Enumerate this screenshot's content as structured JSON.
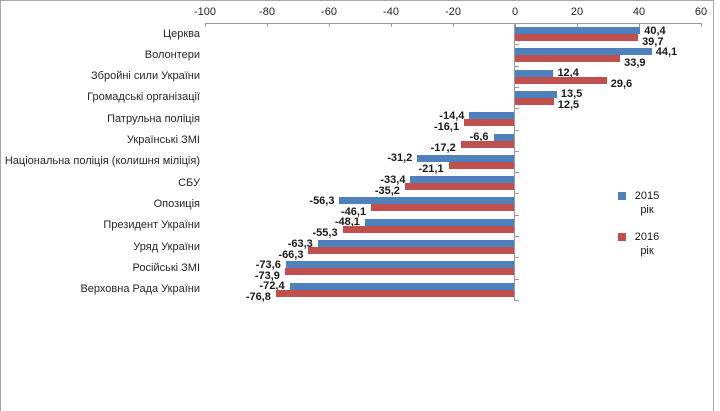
{
  "chart_data": {
    "type": "bar",
    "orientation": "horizontal",
    "title": "",
    "categories": [
      "Церква",
      "Волонтери",
      "Збройні сили України",
      "Громадські організації",
      "Патрульна поліція",
      "Українські ЗМІ",
      "Національна поліція (колишня міліція)",
      "СБУ",
      "Опозиція",
      "Президент України",
      "Уряд України",
      "Російські ЗМІ",
      "Верховна Рада України"
    ],
    "series": [
      {
        "name": "2015 рік",
        "color": "#4f81bd",
        "values": [
          40.4,
          44.1,
          12.4,
          13.5,
          -14.4,
          -6.6,
          -31.2,
          -33.4,
          -56.3,
          -48.1,
          -63.3,
          -73.6,
          -72.4
        ]
      },
      {
        "name": "2016 рік",
        "color": "#c0504d",
        "values": [
          39.7,
          33.9,
          29.6,
          12.5,
          -16.1,
          -17.2,
          -21.1,
          -35.2,
          -46.1,
          -55.3,
          -66.3,
          -73.9,
          -76.8
        ]
      }
    ],
    "data_labels": true,
    "decimal_separator": ",",
    "x_axis": {
      "position": "top",
      "min": -100,
      "max": 60,
      "ticks": [
        -100,
        -80,
        -60,
        -40,
        -20,
        0,
        20,
        40,
        60
      ]
    },
    "legend": {
      "position": "right",
      "items": [
        {
          "label": "2015 рік",
          "color": "#4f81bd"
        },
        {
          "label": "2016 рік",
          "color": "#c0504d"
        }
      ]
    },
    "grid": false
  }
}
